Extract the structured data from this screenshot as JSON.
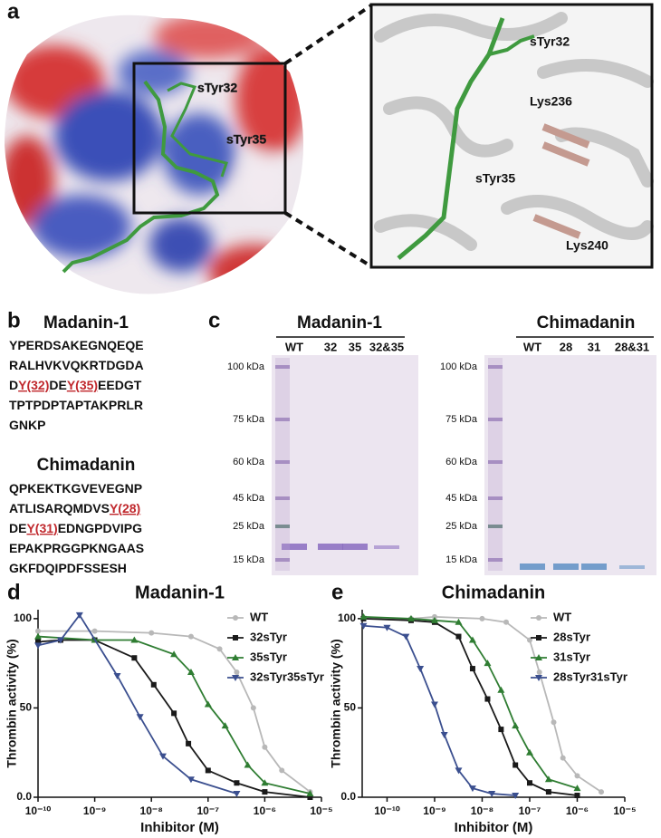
{
  "panel_a": {
    "letter": "a",
    "left_labels": [
      "sTyr32",
      "sTyr35"
    ],
    "right_labels": [
      "sTyr32",
      "Lys236",
      "sTyr35",
      "Lys240"
    ]
  },
  "panel_b": {
    "letter": "b",
    "sequences": [
      {
        "title": "Madanin-1",
        "lines": [
          [
            "YPERDSAKEGNQEQE"
          ],
          [
            "RALHVKVQKRTDGDA"
          ],
          [
            "D",
            {
              "text": "Y(32)",
              "highlight": true
            },
            "DE",
            {
              "text": "Y(35)",
              "highlight": true
            },
            "EEDGT"
          ],
          [
            "TPTPDPTAPTAKPRLR"
          ],
          [
            "GNKP"
          ]
        ]
      },
      {
        "title": "Chimadanin",
        "lines": [
          [
            "QPKEKTKGVEVEGNP"
          ],
          [
            "ATLISARQMDVS",
            {
              "text": "Y(28)",
              "highlight": true
            }
          ],
          [
            "DE",
            {
              "text": "Y(31)",
              "highlight": true
            },
            "EDNGPDVIPG"
          ],
          [
            "EPAKPRGGPKNGAAS"
          ],
          [
            "GKFDQIPDFSSESH"
          ]
        ]
      }
    ]
  },
  "panel_c": {
    "letter": "c",
    "gels": [
      {
        "title": "Madanin-1",
        "lanes": [
          "WT",
          "32",
          "35",
          "32&35"
        ],
        "markers": [
          "100 kDa",
          "75 kDa",
          "60 kDa",
          "45 kDa",
          "25 kDa",
          "15 kDa"
        ],
        "band_color": "#8a6cc0"
      },
      {
        "title": "Chimadanin",
        "lanes": [
          "WT",
          "28",
          "31",
          "28&31"
        ],
        "markers": [
          "100 kDa",
          "75 kDa",
          "60 kDa",
          "45 kDa",
          "25 kDa",
          "15 kDa"
        ],
        "band_color": "#5f8fc4"
      }
    ]
  },
  "chart_data": [
    {
      "type": "line",
      "letter": "d",
      "title": "Madanin-1",
      "xlabel": "Inhibitor (M)",
      "ylabel": "Thrombin activity (%)",
      "xlog": true,
      "xlim": [
        1e-10,
        1e-05
      ],
      "xticks": [
        {
          "value": 1e-10,
          "label": "10⁻¹⁰"
        },
        {
          "value": 1e-09,
          "label": "10⁻⁹"
        },
        {
          "value": 1e-08,
          "label": "10⁻⁸"
        },
        {
          "value": 1e-07,
          "label": "10⁻⁷"
        },
        {
          "value": 1e-06,
          "label": "10⁻⁶"
        },
        {
          "value": 1e-05,
          "label": "10⁻⁵"
        }
      ],
      "ylim": [
        0,
        105
      ],
      "yticks": [
        {
          "value": 0,
          "label": "0.0"
        },
        50,
        100
      ],
      "series": [
        {
          "name": "WT",
          "color": "#b8b8b8",
          "marker": "circle",
          "x": [
            1e-10,
            1e-09,
            1e-08,
            5e-08,
            1.6e-07,
            3.2e-07,
            6.3e-07,
            1e-06,
            2e-06,
            6.3e-06
          ],
          "values": [
            93,
            93,
            92,
            90,
            83,
            70,
            50,
            28,
            15,
            3
          ]
        },
        {
          "name": "32sTyr",
          "color": "#1a1a1a",
          "marker": "square",
          "x": [
            1e-10,
            2.5e-10,
            1e-09,
            5e-09,
            1.1e-08,
            2.5e-08,
            4.5e-08,
            1e-07,
            3.2e-07,
            1e-06,
            6.3e-06
          ],
          "values": [
            87,
            88,
            88,
            78,
            63,
            47,
            30,
            15,
            8,
            3,
            0
          ]
        },
        {
          "name": "35sTyr",
          "color": "#2f7d32",
          "marker": "triangle",
          "x": [
            1e-10,
            1e-09,
            5e-09,
            2.5e-08,
            5e-08,
            1e-07,
            2e-07,
            5e-07,
            1e-06,
            6.3e-06
          ],
          "values": [
            90,
            88,
            88,
            80,
            70,
            52,
            40,
            18,
            8,
            2
          ]
        },
        {
          "name": "32sTyr35sTyr",
          "color": "#3b4f8f",
          "marker": "triangle-down",
          "x": [
            1e-10,
            2.5e-10,
            5.4e-10,
            2.5e-09,
            6.3e-09,
            1.6e-08,
            5e-08,
            3.2e-07
          ],
          "values": [
            85,
            88,
            102,
            68,
            45,
            23,
            10,
            2
          ]
        }
      ]
    },
    {
      "type": "line",
      "letter": "e",
      "title": "Chimadanin",
      "xlabel": "Inhibitor (M)",
      "ylabel": "Thrombin activity (%)",
      "xlog": true,
      "xlim": [
        3e-11,
        1e-05
      ],
      "xticks": [
        {
          "value": 1e-10,
          "label": "10⁻¹⁰"
        },
        {
          "value": 1e-09,
          "label": "10⁻⁹"
        },
        {
          "value": 1e-08,
          "label": "10⁻⁸"
        },
        {
          "value": 1e-07,
          "label": "10⁻⁷"
        },
        {
          "value": 1e-06,
          "label": "10⁻⁶"
        },
        {
          "value": 1e-05,
          "label": "10⁻⁵"
        }
      ],
      "ylim": [
        0,
        105
      ],
      "yticks": [
        {
          "value": 0,
          "label": "0.0"
        },
        50,
        100
      ],
      "series": [
        {
          "name": "WT",
          "color": "#b8b8b8",
          "marker": "circle",
          "x": [
            3.2e-11,
            3.2e-10,
            1e-09,
            1e-08,
            3.2e-08,
            1e-07,
            1.6e-07,
            3.2e-07,
            5e-07,
            1e-06,
            3.2e-06
          ],
          "values": [
            100,
            100,
            101,
            100,
            98,
            88,
            70,
            42,
            22,
            12,
            3
          ]
        },
        {
          "name": "28sTyr",
          "color": "#1a1a1a",
          "marker": "square",
          "x": [
            3.2e-11,
            3.2e-10,
            1e-09,
            3.2e-09,
            6.3e-09,
            1.3e-08,
            2.5e-08,
            5e-08,
            1e-07,
            2.5e-07,
            1e-06
          ],
          "values": [
            100,
            99,
            98,
            90,
            72,
            55,
            38,
            18,
            8,
            3,
            1
          ]
        },
        {
          "name": "31sTyr",
          "color": "#2f7d32",
          "marker": "triangle",
          "x": [
            3.2e-11,
            3.2e-10,
            1e-09,
            3.2e-09,
            6.3e-09,
            1.3e-08,
            2.5e-08,
            5e-08,
            1e-07,
            2.5e-07,
            1e-06
          ],
          "values": [
            101,
            100,
            99,
            98,
            88,
            75,
            60,
            40,
            25,
            10,
            5
          ]
        },
        {
          "name": "28sTyr31sTyr",
          "color": "#3b4f8f",
          "marker": "triangle-down",
          "x": [
            3.2e-11,
            1e-10,
            2.5e-10,
            5e-10,
            1e-09,
            1.6e-09,
            3.2e-09,
            6.3e-09,
            1.6e-08,
            5e-08
          ],
          "values": [
            96,
            95,
            90,
            72,
            52,
            35,
            15,
            5,
            2,
            1
          ]
        }
      ]
    }
  ]
}
